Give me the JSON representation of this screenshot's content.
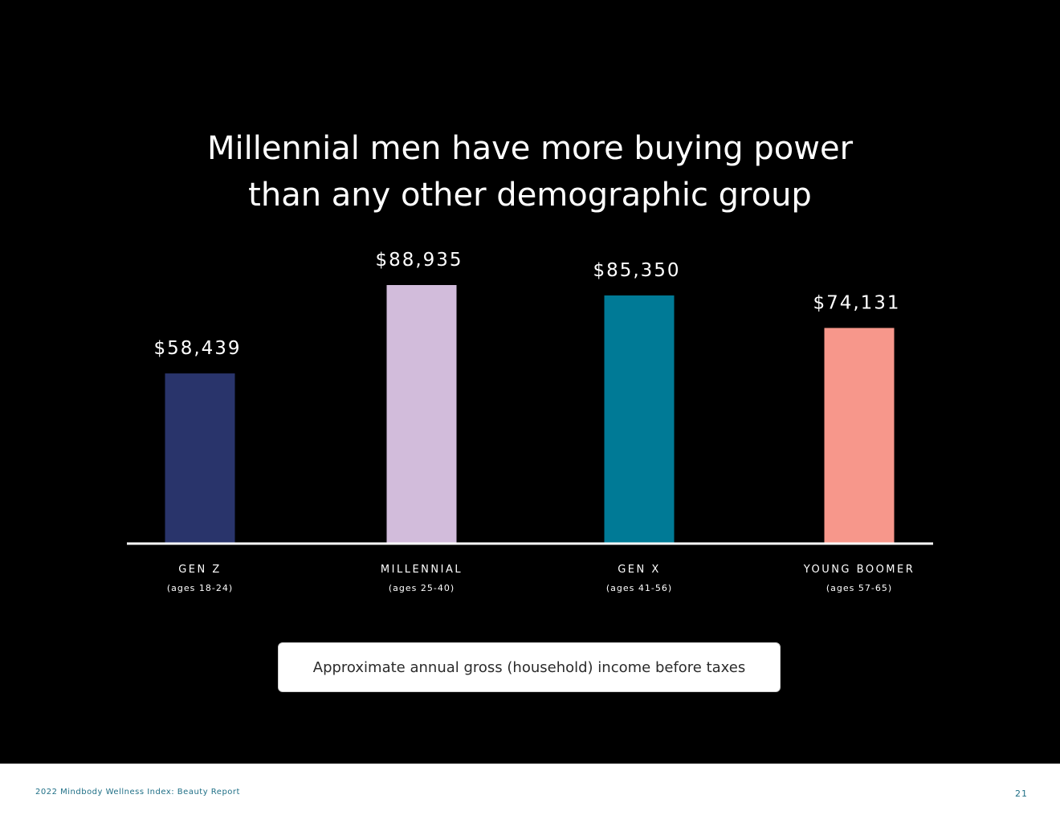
{
  "title_lines": [
    "Millennial men have more buying power",
    "than any other demographic group"
  ],
  "chart_data": {
    "type": "bar",
    "categories": [
      "GEN Z",
      "MILLENNIAL",
      "GEN X",
      "YOUNG BOOMER"
    ],
    "subcategories": [
      "(ages 18-24)",
      "(ages 25-40)",
      "(ages 41-56)",
      "(ages 57-65)"
    ],
    "values": [
      58439,
      88935,
      85350,
      74131
    ],
    "value_labels": [
      "$58,439",
      "$88,935",
      "$85,350",
      "$74,131"
    ],
    "colors": [
      "#29346b",
      "#d2bcdb",
      "#007a96",
      "#f7978b"
    ],
    "ylim": [
      0,
      100000
    ],
    "grid": false,
    "legend": "none"
  },
  "note": "Approximate annual gross (household) income before taxes",
  "footer": {
    "report_name": "2022 Mindbody Wellness Index: Beauty Report",
    "page_number": "21"
  }
}
